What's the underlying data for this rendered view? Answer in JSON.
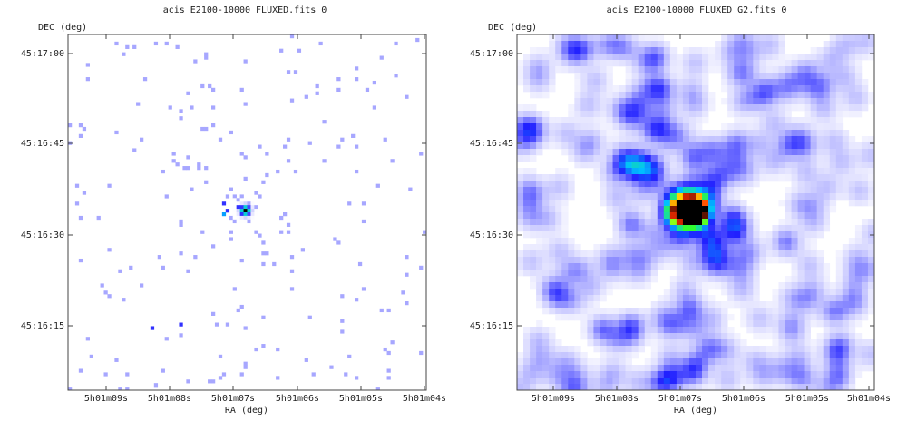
{
  "chart_data": [
    {
      "type": "heatmap",
      "title": "acis_E2100-10000_FLUXED.fits_0",
      "xlabel": "RA (deg)",
      "ylabel": "DEC (deg)",
      "x_ticks": [
        "5h01m09s",
        "5h01m08s",
        "5h01m07s",
        "5h01m06s",
        "5h01m05s",
        "5h01m04s"
      ],
      "y_ticks": [
        "45:17:00",
        "45:16:45",
        "45:16:30",
        "45:16:15"
      ],
      "smoothing": "none",
      "colormap": [
        "#ffffff",
        "#b8b8ff",
        "#2020ff",
        "#00c0ff",
        "#30ff30",
        "#ffff00",
        "#ff3000",
        "#000000"
      ],
      "source": {
        "ra": "5h01m07.2s",
        "dec": "45:16:34"
      }
    },
    {
      "type": "heatmap",
      "title": "acis_E2100-10000_FLUXED_G2.fits_0",
      "xlabel": "RA (deg)",
      "ylabel": "DEC (deg)",
      "x_ticks": [
        "5h01m09s",
        "5h01m08s",
        "5h01m07s",
        "5h01m06s",
        "5h01m05s",
        "5h01m04s"
      ],
      "y_ticks": [
        "45:17:00",
        "45:16:45",
        "45:16:30",
        "45:16:15"
      ],
      "smoothing": "gaussian",
      "colormap": [
        "#ffffff",
        "#b8b8ff",
        "#2020ff",
        "#00c0ff",
        "#30ff30",
        "#ffff00",
        "#ff3000",
        "#000000"
      ],
      "source": {
        "ra": "5h01m07.2s",
        "dec": "45:16:34"
      }
    }
  ]
}
